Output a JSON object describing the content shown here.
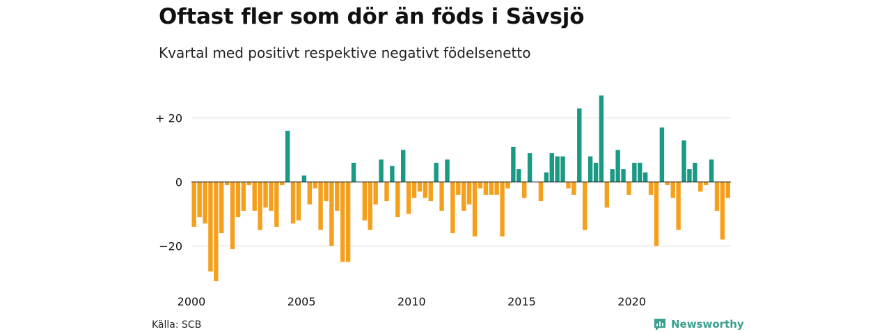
{
  "header": {
    "title": "Oftast fler som dör än föds i Sävsjö",
    "subtitle": "Kvartal med positivt respektive negativt födelsenetto"
  },
  "footer": {
    "source": "Källa: SCB",
    "brand": "Newsworthy",
    "brand_icon": "newsworthy-logo-icon"
  },
  "colors": {
    "positive": "#1a9985",
    "negative": "#f5a01d",
    "grid": "#d9d9d9",
    "baseline": "#222222",
    "text": "#111111",
    "brand": "#3a9f8e"
  },
  "chart_data": {
    "type": "bar",
    "title": "Oftast fler som dör än föds i Sävsjö",
    "subtitle": "Kvartal med positivt respektive negativt födelsenetto",
    "xlabel": "",
    "ylabel": "",
    "start_year": 2000,
    "periods_per_year": 4,
    "x_ticks": [
      "2000",
      "2005",
      "2010",
      "2015",
      "2020"
    ],
    "y_ticks": [
      20,
      0,
      -20
    ],
    "y_tick_labels": [
      "+ 20",
      "0",
      "−20"
    ],
    "ylim": [
      -31,
      27
    ],
    "grid": true,
    "legend": "none",
    "values": [
      -14,
      -11,
      -13,
      -28,
      -31,
      -16,
      -1,
      -21,
      -11,
      -9,
      -1,
      -9,
      -15,
      -8,
      -9,
      -14,
      -1,
      16,
      -13,
      -12,
      2,
      -7,
      -2,
      -15,
      -6,
      -20,
      -9,
      -25,
      -25,
      6,
      0,
      -12,
      -15,
      -7,
      7,
      -6,
      5,
      -11,
      10,
      -10,
      -5,
      -3,
      -5,
      -6,
      6,
      -9,
      7,
      -16,
      -4,
      -9,
      -7,
      -17,
      -2,
      -4,
      -4,
      -4,
      -17,
      -2,
      11,
      4,
      -5,
      9,
      0,
      -6,
      3,
      9,
      8,
      8,
      -2,
      -4,
      23,
      -15,
      8,
      6,
      27,
      -8,
      4,
      10,
      4,
      -4,
      6,
      6,
      3,
      -4,
      -20,
      17,
      -1,
      -5,
      -15,
      13,
      4,
      6,
      -3,
      -1,
      7,
      -9,
      -18,
      -5
    ]
  }
}
